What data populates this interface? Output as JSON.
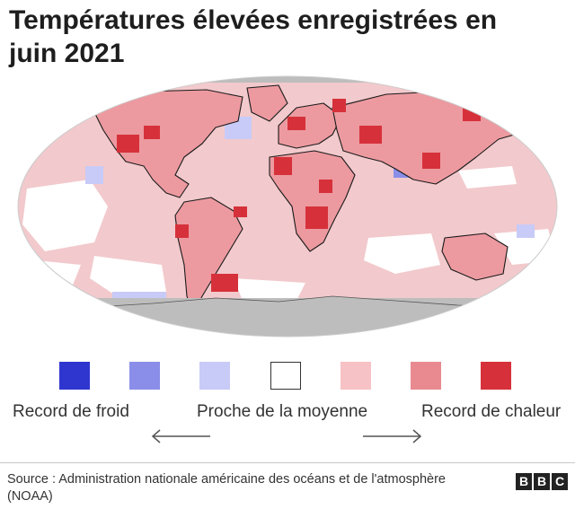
{
  "title": "Températures élevées enregistrées en juin 2021",
  "legend": {
    "colors": [
      "#2f36cf",
      "#8a8ee8",
      "#c8cbf7",
      "#ffffff",
      "#f7c2c5",
      "#e98a90",
      "#d6313a"
    ],
    "cold_label": "Record de froid",
    "average_label": "Proche de la moyenne",
    "hot_label": "Record de chaleur"
  },
  "map_colors": {
    "ocean_base": "#f2c9cc",
    "land_base": "#ec9aa0",
    "record_heat": "#d6313a",
    "near_average": "#ffffff",
    "cool": "#c8cbf7",
    "no_data": "#bdbdbd",
    "outline": "#1a1a1a"
  },
  "source": "Source : Administration nationale américaine des océans et de l'atmosphère (NOAA)",
  "logo_text": "BBC"
}
